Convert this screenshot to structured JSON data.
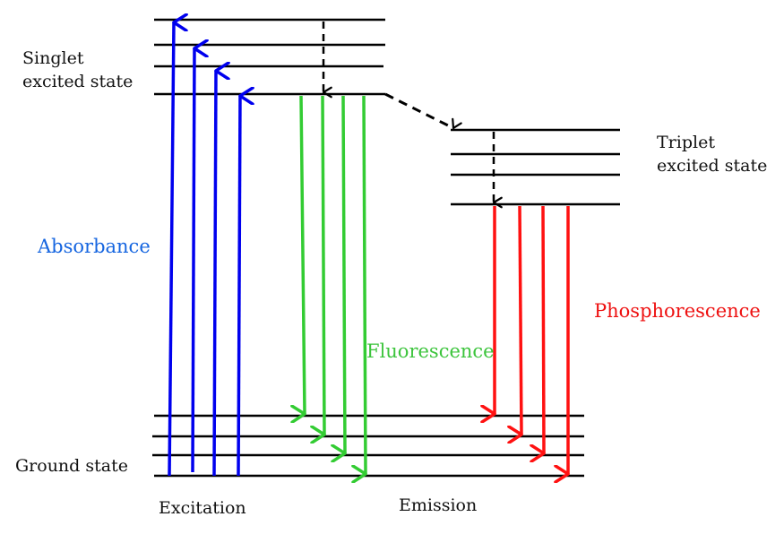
{
  "labels": {
    "singlet_line1": "Singlet",
    "singlet_line2": "excited state",
    "triplet_line1": "Triplet",
    "triplet_line2": "excited state",
    "absorbance": "Absorbance",
    "fluorescence": "Fluorescence",
    "phosphorescence": "Phosphorescence",
    "ground_state": "Ground state",
    "excitation": "Excitation",
    "emission": "Emission"
  },
  "colors": {
    "level": "#000000",
    "absorbance": "#0000ee",
    "fluorescence": "#33cc33",
    "phosphorescence": "#ff1111",
    "absorbance_label": "#1565e0",
    "fluorescence_label": "#3cc43c",
    "phosphorescence_label": "#ee1111",
    "nonradiative": "#000000"
  }
}
